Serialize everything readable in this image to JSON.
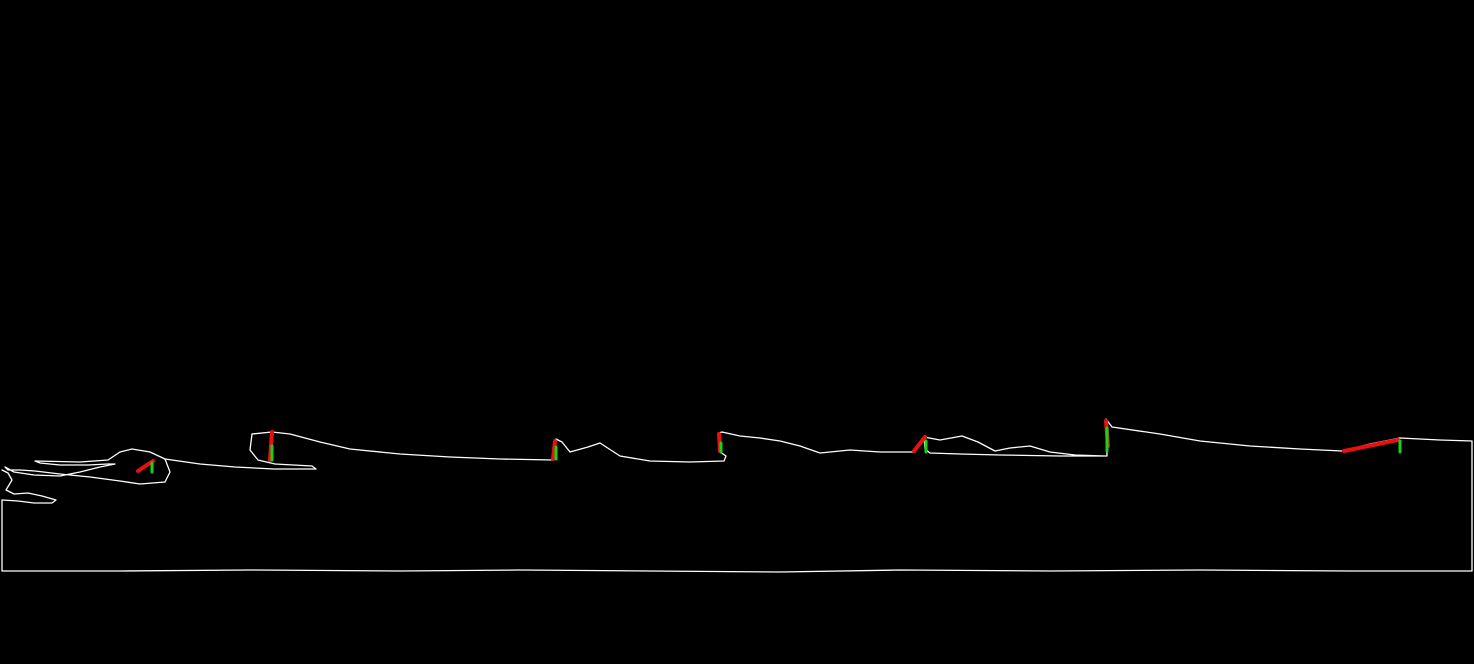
{
  "image": {
    "background_color": "#000000",
    "outline_color": "#ffffff",
    "red_mark_color": "#e81010",
    "green_mark_color": "#18d418",
    "marker_pairs": 7
  }
}
